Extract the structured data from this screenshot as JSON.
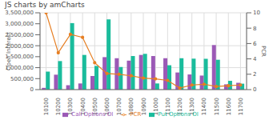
{
  "chart_data": {
    "type": "bar",
    "title": "JS charts by amCharts",
    "categories": [
      "10100",
      "10200",
      "10300",
      "10400",
      "10500",
      "10600",
      "10700",
      "10800",
      "10900",
      "11000",
      "11100",
      "11200",
      "11300",
      "11400",
      "11500",
      "11600",
      "11700"
    ],
    "series": [
      {
        "name": "Call Options OI",
        "color": "#9b59b6",
        "values": [
          80000,
          680000,
          200000,
          280000,
          620000,
          1480000,
          1430000,
          1320000,
          1580000,
          1530000,
          1430000,
          780000,
          690000,
          640000,
          2030000,
          240000,
          310000
        ]
      },
      {
        "name": "Put Options OI",
        "color": "#1abc9c",
        "values": [
          820000,
          1300000,
          3030000,
          1580000,
          1080000,
          3200000,
          1030000,
          1530000,
          1630000,
          280000,
          1110000,
          1430000,
          1410000,
          1400000,
          1360000,
          400000,
          270000
        ]
      },
      {
        "name": "PCR",
        "type": "line",
        "axis": "y2",
        "color": "#e67e22",
        "marker": "circle",
        "values": [
          10.0,
          4.8,
          7.2,
          6.8,
          3.5,
          2.1,
          2.0,
          1.8,
          1.5,
          1.4,
          1.2,
          0.2,
          0.6,
          0.7,
          0.4,
          0.5,
          0.6
        ]
      }
    ],
    "ylabel": "Open Interest",
    "y2label": "PCR",
    "ylim": [
      0,
      3500000
    ],
    "yticks": [
      0,
      {
        "value": 500000,
        "label": "500,000"
      },
      {
        "value": 1000000,
        "label": "1,000,000"
      },
      {
        "value": 1500000,
        "label": "1,500,000"
      },
      {
        "value": 2000000,
        "label": "2,000,000"
      },
      {
        "value": 2500000,
        "label": "2,500,000"
      },
      {
        "value": 3000000,
        "label": "3,000,000"
      },
      {
        "value": 3500000,
        "label": "3,500,000"
      }
    ],
    "y2lim": [
      0,
      10
    ],
    "y2ticks": [
      0,
      2,
      4,
      6,
      8,
      10
    ],
    "grid": true,
    "legend": "bottom"
  }
}
